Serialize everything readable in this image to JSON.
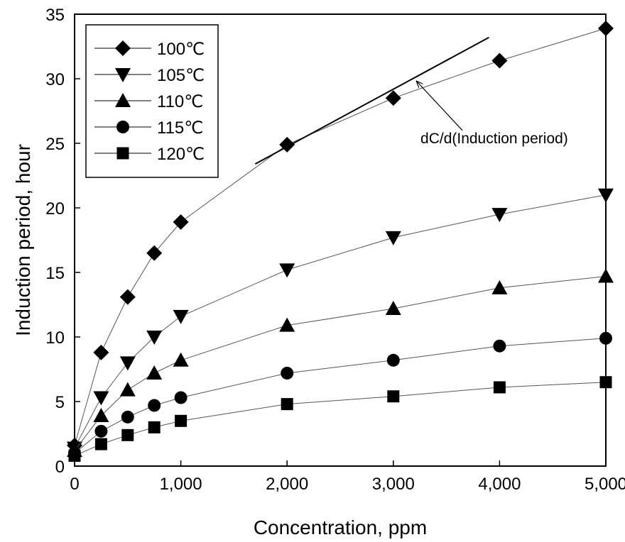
{
  "chart_data": {
    "type": "line",
    "title": "",
    "xlabel": "Concentration, ppm",
    "ylabel": "Induction period, hour",
    "xlim": [
      0,
      5000
    ],
    "ylim": [
      0,
      35
    ],
    "x_ticks": [
      0,
      1000,
      2000,
      3000,
      4000,
      5000
    ],
    "x_tick_labels": [
      "0",
      "1,000",
      "2,000",
      "3,000",
      "4,000",
      "5,000"
    ],
    "y_ticks": [
      0,
      5,
      10,
      15,
      20,
      25,
      30,
      35
    ],
    "y_tick_labels": [
      "0",
      "5",
      "10",
      "15",
      "20",
      "25",
      "30",
      "35"
    ],
    "grid": false,
    "legend_position": "top-left",
    "x": [
      0,
      250,
      500,
      750,
      1000,
      2000,
      3000,
      4000,
      5000
    ],
    "series": [
      {
        "name": "100℃",
        "marker": "diamond",
        "values": [
          1.6,
          8.8,
          13.1,
          16.5,
          18.9,
          24.9,
          28.5,
          31.4,
          33.9
        ]
      },
      {
        "name": "105℃",
        "marker": "triangle-down",
        "values": [
          1.4,
          5.3,
          8.0,
          10.0,
          11.6,
          15.2,
          17.7,
          19.5,
          21.0
        ]
      },
      {
        "name": "110℃",
        "marker": "triangle-up",
        "values": [
          1.2,
          3.9,
          5.9,
          7.2,
          8.2,
          10.9,
          12.2,
          13.8,
          14.7
        ]
      },
      {
        "name": "115℃",
        "marker": "circle",
        "values": [
          1.0,
          2.7,
          3.8,
          4.7,
          5.3,
          7.2,
          8.2,
          9.3,
          9.9
        ]
      },
      {
        "name": "120℃",
        "marker": "square",
        "values": [
          0.8,
          1.7,
          2.4,
          3.0,
          3.5,
          4.8,
          5.4,
          6.1,
          6.5
        ]
      }
    ],
    "annotations": [
      {
        "text": "dC/d(Induction period)",
        "tangent_line": {
          "from": [
            1700,
            23.4
          ],
          "to": [
            3900,
            33.2
          ]
        },
        "arrow_from": [
          3650,
          26.0
        ],
        "arrow_to": [
          3220,
          29.8
        ],
        "text_at": [
          3950,
          25.0
        ]
      }
    ]
  }
}
